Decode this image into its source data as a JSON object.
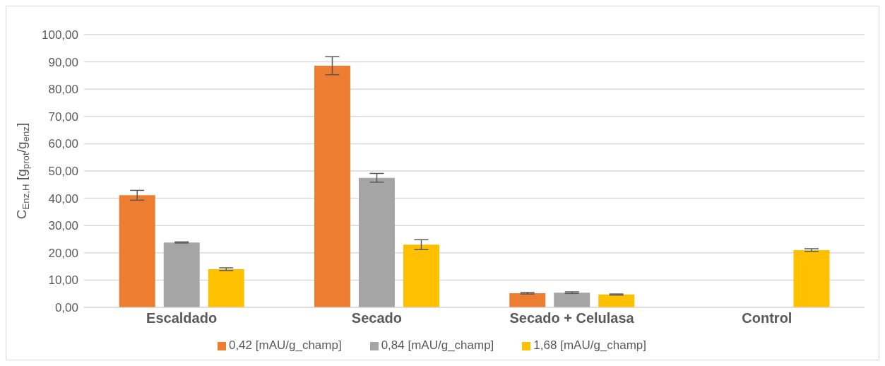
{
  "chart_data": {
    "type": "bar",
    "ylabel": "C$_{Enz,H}$ [g$_{prot}$/g$_{enz}$]",
    "categories": [
      "Escaldado",
      "Secado",
      "Secado + Celulasa",
      "Control"
    ],
    "series": [
      {
        "name": "0,42 [mAU/g_champ]",
        "color": "#ed7d31",
        "values": [
          41.1,
          88.6,
          5.2,
          null
        ],
        "errors": [
          1.8,
          3.3,
          0.3,
          null
        ]
      },
      {
        "name": "0,84 [mAU/g_champ]",
        "color": "#a5a5a5",
        "values": [
          23.8,
          47.5,
          5.4,
          null
        ],
        "errors": [
          0.2,
          1.6,
          0.3,
          null
        ]
      },
      {
        "name": "1,68 [mAU/g_champ]",
        "color": "#ffc000",
        "values": [
          14.0,
          23.0,
          4.7,
          21.0
        ],
        "errors": [
          0.5,
          1.8,
          0.2,
          0.5
        ]
      }
    ],
    "ylim": [
      0,
      100
    ],
    "yticks": [
      {
        "value": 0,
        "label": "0,00"
      },
      {
        "value": 10,
        "label": "10,00"
      },
      {
        "value": 20,
        "label": "20,00"
      },
      {
        "value": 30,
        "label": "30,00"
      },
      {
        "value": 40,
        "label": "40,00"
      },
      {
        "value": 50,
        "label": "50,00"
      },
      {
        "value": 60,
        "label": "60,00"
      },
      {
        "value": 70,
        "label": "70,00"
      },
      {
        "value": 80,
        "label": "80,00"
      },
      {
        "value": 90,
        "label": "90,00"
      },
      {
        "value": 100,
        "label": "100,00"
      }
    ],
    "grid": "y",
    "legend": "bottom"
  }
}
